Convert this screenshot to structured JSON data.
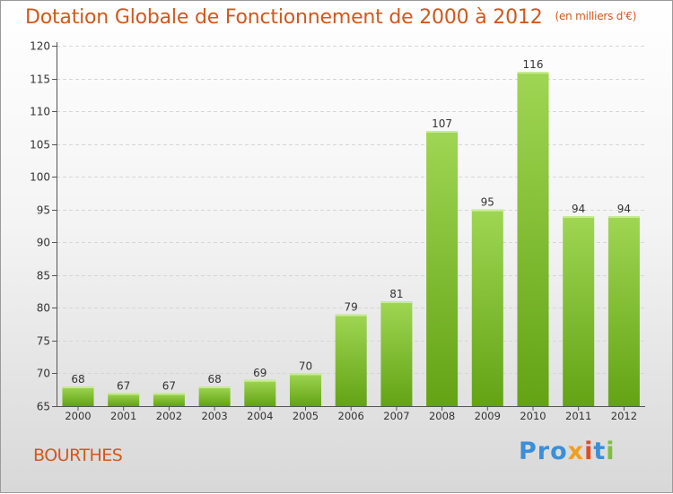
{
  "header": {
    "title": "Dotation Globale de Fonctionnement de 2000 à 2012",
    "subtitle": "(en milliers d'€)"
  },
  "footer": {
    "place": "BOURTHES",
    "logo": {
      "p1": "Pro",
      "p2": "x",
      "p3": "i",
      "p4": "t",
      "p5": "i"
    }
  },
  "colors": {
    "bar_light": "#9fd653",
    "bar_dark": "#63a314",
    "title": "#d2581c"
  },
  "chart_data": {
    "type": "bar",
    "title": "Dotation Globale de Fonctionnement de 2000 à 2012",
    "subtitle": "(en milliers d'€)",
    "categories": [
      "2000",
      "2001",
      "2002",
      "2003",
      "2004",
      "2005",
      "2006",
      "2007",
      "2008",
      "2009",
      "2010",
      "2011",
      "2012"
    ],
    "values": [
      68,
      67,
      67,
      68,
      69,
      70,
      79,
      81,
      107,
      95,
      116,
      94,
      94
    ],
    "ylim": [
      65,
      120
    ],
    "yticks": [
      65,
      70,
      75,
      80,
      85,
      90,
      95,
      100,
      105,
      110,
      115,
      120
    ],
    "grid": true,
    "data_labels": true
  }
}
